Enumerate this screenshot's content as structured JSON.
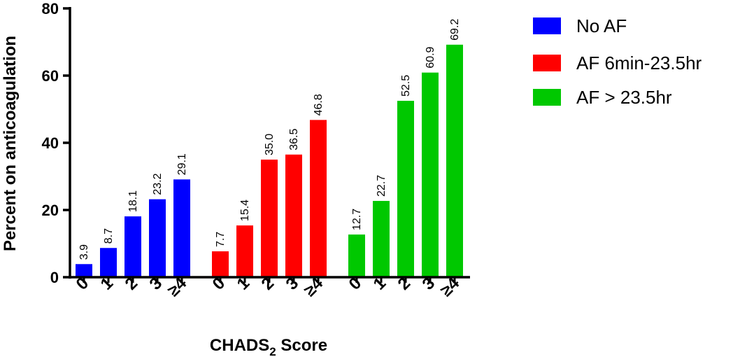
{
  "chart_data": {
    "type": "bar",
    "ylabel": "Percent on anticoagulation",
    "xlabel_main": "CHADS",
    "xlabel_sub": "2",
    "xlabel_tail": " Score",
    "ylim": [
      0,
      80
    ],
    "yticks": [
      "0",
      "20",
      "40",
      "60",
      "80"
    ],
    "categories": [
      "0",
      "1",
      "2",
      "3",
      "≥4"
    ],
    "legend_position": "right",
    "series": [
      {
        "name": "No AF",
        "color": "#0000ff",
        "values": [
          3.9,
          8.7,
          18.1,
          23.2,
          29.1
        ],
        "labels": [
          "3.9",
          "8.7",
          "18.1",
          "23.2",
          "29.1"
        ]
      },
      {
        "name": "AF 6min-23.5hr",
        "color": "#ff0000",
        "values": [
          7.7,
          15.4,
          35.0,
          36.5,
          46.8
        ],
        "labels": [
          "7.7",
          "15.4",
          "35.0",
          "36.5",
          "46.8"
        ]
      },
      {
        "name": "AF > 23.5hr",
        "color": "#00c800",
        "values": [
          12.7,
          22.7,
          52.5,
          60.9,
          69.2
        ],
        "labels": [
          "12.7",
          "22.7",
          "52.5",
          "60.9",
          "69.2"
        ]
      }
    ]
  }
}
